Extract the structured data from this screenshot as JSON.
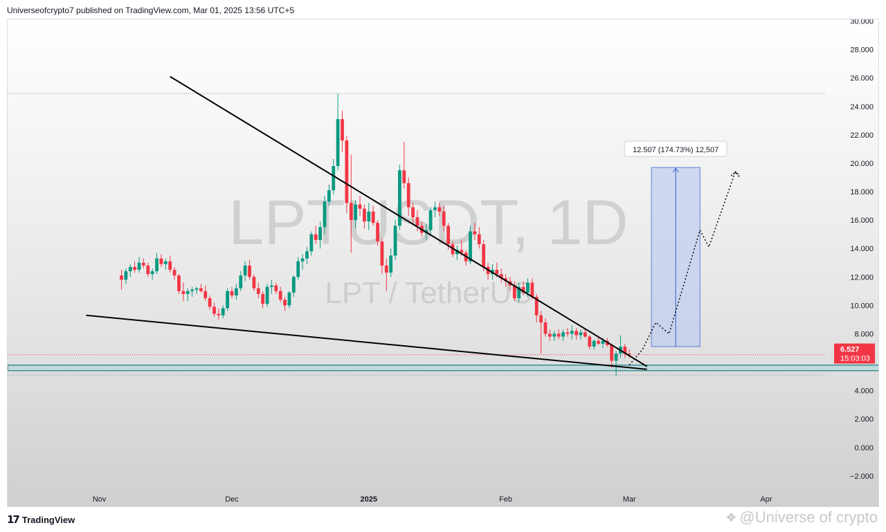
{
  "header": {
    "attribution": "Universeofcrypto7 published on TradingView.com, Mar 01, 2025 13:56 UTC+5"
  },
  "footer": {
    "logo_text": "TradingView",
    "logo_icon": "tradingview-logo-icon",
    "credit_text": "@Universe of crypto",
    "credit_icon": "diamond-logo-icon"
  },
  "chart_data": {
    "type": "candlestick",
    "symbol_watermark": "LPTUSDT, 1D",
    "pair_watermark": "LPT / TetherUS",
    "ylim": [
      -3.1,
      30
    ],
    "y_ticks": [
      "30.000",
      "28.000",
      "26.000",
      "24.000",
      "22.000",
      "20.000",
      "18.000",
      "16.000",
      "14.000",
      "12.000",
      "10.000",
      "8.000",
      "4.000",
      "2.000",
      "0.000",
      "−2.000"
    ],
    "x_ticks": [
      {
        "label": "Nov",
        "day": -30
      },
      {
        "label": "Dec",
        "day": 0
      },
      {
        "label": "2025",
        "day": 31
      },
      {
        "label": "Feb",
        "day": 62
      },
      {
        "label": "Mar",
        "day": 90
      },
      {
        "label": "Apr",
        "day": 121
      }
    ],
    "x_tick_bold": "2025",
    "last_price": "6.527",
    "countdown": "15:03:03",
    "colors": {
      "up": "#089981",
      "down": "#f23645",
      "price_label": "#f23645",
      "target_box": "#b7c8f0",
      "support": "#3a8c96"
    },
    "candles": [
      [
        12.1,
        12.5,
        11.1,
        11.8
      ],
      [
        11.8,
        12.6,
        11.5,
        12.4
      ],
      [
        12.4,
        12.9,
        12.0,
        12.7
      ],
      [
        12.7,
        13.1,
        12.3,
        12.5
      ],
      [
        12.5,
        13.4,
        12.3,
        13.0
      ],
      [
        13.0,
        13.3,
        12.6,
        12.8
      ],
      [
        12.8,
        13.0,
        12.0,
        12.2
      ],
      [
        12.2,
        12.6,
        11.8,
        12.4
      ],
      [
        12.4,
        13.7,
        12.2,
        13.3
      ],
      [
        13.3,
        13.6,
        12.7,
        12.9
      ],
      [
        12.9,
        13.3,
        12.5,
        13.1
      ],
      [
        13.1,
        13.5,
        12.3,
        12.5
      ],
      [
        12.5,
        12.7,
        11.8,
        12.1
      ],
      [
        12.1,
        12.2,
        10.8,
        11.0
      ],
      [
        11.0,
        11.6,
        10.3,
        10.8
      ],
      [
        10.8,
        11.2,
        10.3,
        11.0
      ],
      [
        11.0,
        11.3,
        10.6,
        11.1
      ],
      [
        11.1,
        11.3,
        10.8,
        11.2
      ],
      [
        11.2,
        11.5,
        10.9,
        11.0
      ],
      [
        11.0,
        11.4,
        10.3,
        10.5
      ],
      [
        10.5,
        10.7,
        9.7,
        9.9
      ],
      [
        9.9,
        10.2,
        9.2,
        9.4
      ],
      [
        9.4,
        9.8,
        9.0,
        9.3
      ],
      [
        9.3,
        10.0,
        9.1,
        9.8
      ],
      [
        9.8,
        11.2,
        9.6,
        11.0
      ],
      [
        11.0,
        11.3,
        10.5,
        10.7
      ],
      [
        10.7,
        11.5,
        10.4,
        11.2
      ],
      [
        11.2,
        12.4,
        11.0,
        12.1
      ],
      [
        12.1,
        13.1,
        11.7,
        12.8
      ],
      [
        12.8,
        13.2,
        11.8,
        12.0
      ],
      [
        12.0,
        12.2,
        11.0,
        11.2
      ],
      [
        11.2,
        11.6,
        10.5,
        10.8
      ],
      [
        10.8,
        11.0,
        9.8,
        10.1
      ],
      [
        10.1,
        11.5,
        9.9,
        11.3
      ],
      [
        11.3,
        11.8,
        10.8,
        11.4
      ],
      [
        11.4,
        11.6,
        10.8,
        11.0
      ],
      [
        11.0,
        11.3,
        10.2,
        10.4
      ],
      [
        10.4,
        10.6,
        9.6,
        10.0
      ],
      [
        10.0,
        11.0,
        9.8,
        10.9
      ],
      [
        10.9,
        12.1,
        10.6,
        12.0
      ],
      [
        12.0,
        13.4,
        11.8,
        13.1
      ],
      [
        13.1,
        13.6,
        12.5,
        13.3
      ],
      [
        13.3,
        14.1,
        12.9,
        13.8
      ],
      [
        13.8,
        15.2,
        13.5,
        15.0
      ],
      [
        15.0,
        15.6,
        14.3,
        14.6
      ],
      [
        14.6,
        15.9,
        14.0,
        15.5
      ],
      [
        15.5,
        17.7,
        15.0,
        17.3
      ],
      [
        17.3,
        18.5,
        17.0,
        18.1
      ],
      [
        18.1,
        20.3,
        17.8,
        19.8
      ],
      [
        19.8,
        24.9,
        19.5,
        23.1
      ],
      [
        23.1,
        23.7,
        20.8,
        21.6
      ],
      [
        21.6,
        21.9,
        16.5,
        17.2
      ],
      [
        17.2,
        20.6,
        13.7,
        16.0
      ],
      [
        16.0,
        17.4,
        15.4,
        17.1
      ],
      [
        17.1,
        17.7,
        16.3,
        16.8
      ],
      [
        16.8,
        17.1,
        15.4,
        15.9
      ],
      [
        15.9,
        17.2,
        15.3,
        16.6
      ],
      [
        16.6,
        17.0,
        15.6,
        15.8
      ],
      [
        15.8,
        16.0,
        14.2,
        14.5
      ],
      [
        14.5,
        14.7,
        12.2,
        12.8
      ],
      [
        12.8,
        13.3,
        11.0,
        12.3
      ],
      [
        12.3,
        14.0,
        12.0,
        13.5
      ],
      [
        13.5,
        16.0,
        13.2,
        15.6
      ],
      [
        15.6,
        19.9,
        15.3,
        19.5
      ],
      [
        19.5,
        21.5,
        18.2,
        18.6
      ],
      [
        18.6,
        19.0,
        16.3,
        16.9
      ],
      [
        16.9,
        17.2,
        15.8,
        16.2
      ],
      [
        16.2,
        16.7,
        15.2,
        15.6
      ],
      [
        15.6,
        15.9,
        14.8,
        15.1
      ],
      [
        15.1,
        15.7,
        14.6,
        15.3
      ],
      [
        15.3,
        16.9,
        15.0,
        16.7
      ],
      [
        16.7,
        17.3,
        16.2,
        16.9
      ],
      [
        16.9,
        17.2,
        16.3,
        16.6
      ],
      [
        16.6,
        17.0,
        15.2,
        15.6
      ],
      [
        15.6,
        15.8,
        13.9,
        14.3
      ],
      [
        14.3,
        14.5,
        13.4,
        13.6
      ],
      [
        13.6,
        14.2,
        13.2,
        13.9
      ],
      [
        13.9,
        14.6,
        13.5,
        13.7
      ],
      [
        13.7,
        13.9,
        12.8,
        13.1
      ],
      [
        13.1,
        15.6,
        12.9,
        15.2
      ],
      [
        15.2,
        15.8,
        14.6,
        15.0
      ],
      [
        15.0,
        15.5,
        14.0,
        14.3
      ],
      [
        14.3,
        14.6,
        12.4,
        12.7
      ],
      [
        12.7,
        13.0,
        11.8,
        12.2
      ],
      [
        12.2,
        12.9,
        11.8,
        12.5
      ],
      [
        12.5,
        13.0,
        12.0,
        12.2
      ],
      [
        12.2,
        12.6,
        11.6,
        11.9
      ],
      [
        11.9,
        12.2,
        11.3,
        11.7
      ],
      [
        11.7,
        12.0,
        11.0,
        11.4
      ],
      [
        11.4,
        11.7,
        10.3,
        10.5
      ],
      [
        10.5,
        11.6,
        10.2,
        11.3
      ],
      [
        11.3,
        11.7,
        10.7,
        10.9
      ],
      [
        10.9,
        11.9,
        10.6,
        11.6
      ],
      [
        11.6,
        11.9,
        10.4,
        10.6
      ],
      [
        10.6,
        10.8,
        8.8,
        9.3
      ],
      [
        9.3,
        9.6,
        6.6,
        8.8
      ],
      [
        8.8,
        9.1,
        7.8,
        8.0
      ],
      [
        8.0,
        8.3,
        7.5,
        7.8
      ],
      [
        7.8,
        8.2,
        7.5,
        8.0
      ],
      [
        8.0,
        8.3,
        7.6,
        7.8
      ],
      [
        7.8,
        8.3,
        7.5,
        8.1
      ],
      [
        8.1,
        8.4,
        7.8,
        8.0
      ],
      [
        8.0,
        8.6,
        7.6,
        8.2
      ],
      [
        8.2,
        8.4,
        7.6,
        7.9
      ],
      [
        7.9,
        8.3,
        7.6,
        8.1
      ],
      [
        8.1,
        8.4,
        7.7,
        7.8
      ],
      [
        7.8,
        7.9,
        6.9,
        7.1
      ],
      [
        7.1,
        7.6,
        6.9,
        7.5
      ],
      [
        7.5,
        7.8,
        7.2,
        7.3
      ],
      [
        7.3,
        7.7,
        7.0,
        7.5
      ],
      [
        7.5,
        7.7,
        7.1,
        7.2
      ],
      [
        7.2,
        7.3,
        5.6,
        6.1
      ],
      [
        6.1,
        6.8,
        5.0,
        6.6
      ],
      [
        6.6,
        7.9,
        6.3,
        7.1
      ],
      [
        7.1,
        7.3,
        6.3,
        6.6
      ],
      [
        6.6,
        6.9,
        6.3,
        6.53
      ]
    ],
    "trendlines": [
      {
        "name": "upper-resistance",
        "from": {
          "day": -14,
          "price": 26.1
        },
        "to": {
          "day": 94,
          "price": 5.7
        }
      },
      {
        "name": "lower-support",
        "from": {
          "day": -33,
          "price": 9.3
        },
        "to": {
          "day": 94,
          "price": 5.5
        }
      }
    ],
    "support_band": {
      "price": 5.6
    },
    "peak_dotted_line": {
      "price": 24.9
    },
    "last_price_dotted_line": {
      "price": 6.527
    },
    "low_dotted_line": {
      "price": 5.1
    },
    "target_box": {
      "from_day": 95,
      "to_day": 106,
      "bottom": 7.1,
      "top": 19.7
    },
    "measurement_label": "12.507 (174.73%) 12,507",
    "projection_path": [
      [
        90,
        5.8
      ],
      [
        93,
        6.9
      ],
      [
        96,
        8.8
      ],
      [
        99,
        8.0
      ],
      [
        106,
        15.3
      ],
      [
        108,
        14.1
      ],
      [
        114,
        19.4
      ],
      [
        115,
        19.0
      ]
    ]
  }
}
